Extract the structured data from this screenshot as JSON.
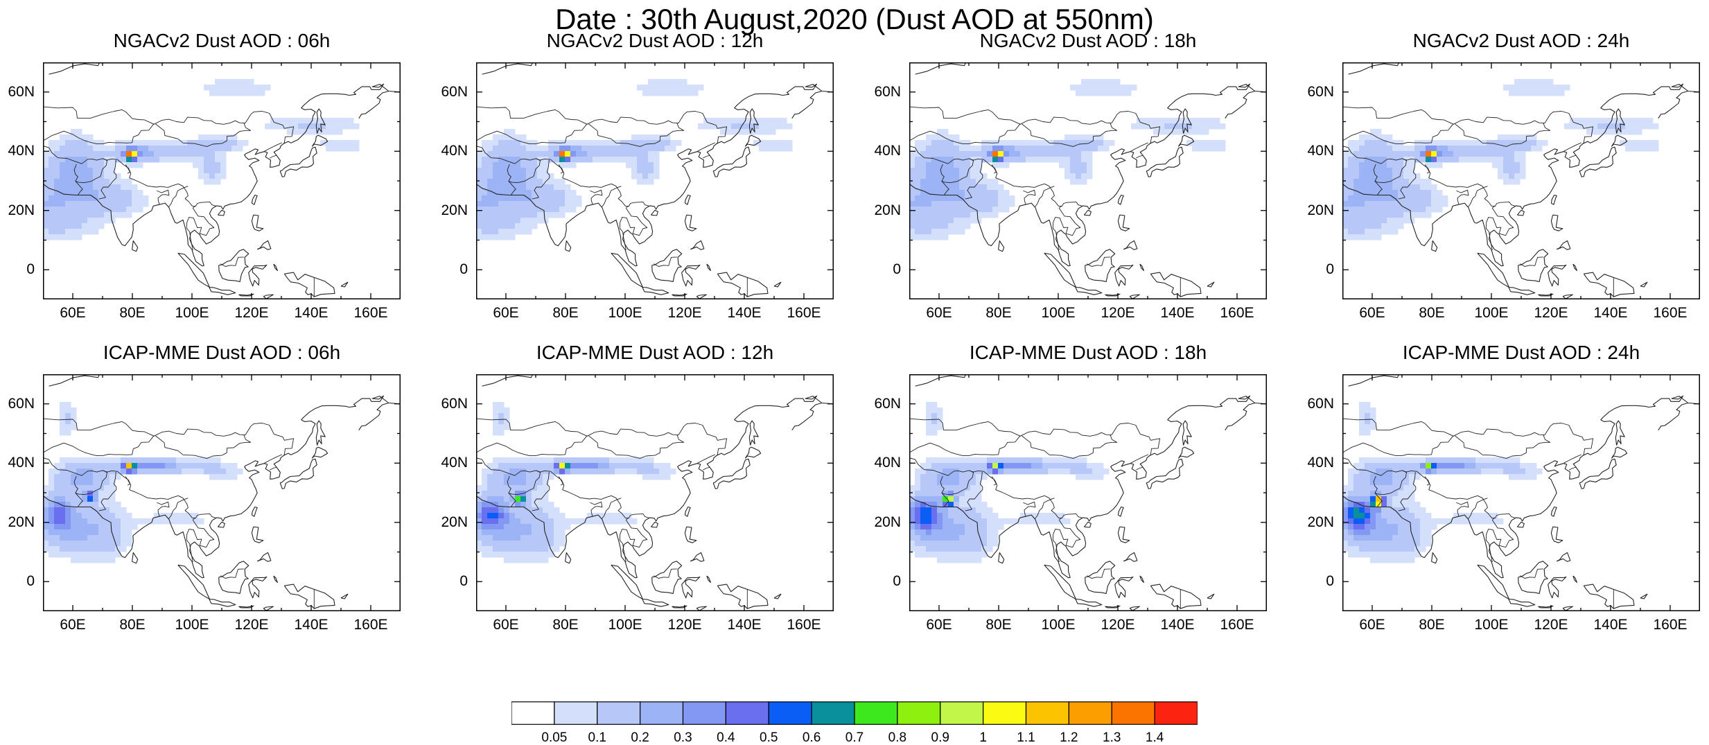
{
  "title": "Date : 30th August,2020 (Dust AOD at 550nm)",
  "map_data": {
    "projection": "cylindrical-equidistant",
    "lon_range": [
      50,
      170
    ],
    "lat_range": [
      -10,
      70
    ],
    "x_ticks": [
      "60E",
      "80E",
      "100E",
      "120E",
      "140E",
      "160E"
    ],
    "y_ticks": [
      "60N",
      "40N",
      "20N",
      "0"
    ],
    "panels": [
      {
        "title": "NGACv2 Dust AOD : 06h",
        "model": "ngac",
        "hour": 6
      },
      {
        "title": "NGACv2 Dust AOD : 12h",
        "model": "ngac",
        "hour": 12
      },
      {
        "title": "NGACv2 Dust AOD : 18h",
        "model": "ngac",
        "hour": 18
      },
      {
        "title": "NGACv2 Dust AOD : 24h",
        "model": "ngac",
        "hour": 24
      },
      {
        "title": "ICAP-MME Dust AOD : 06h",
        "model": "icap",
        "hour": 6
      },
      {
        "title": "ICAP-MME Dust AOD : 12h",
        "model": "icap",
        "hour": 12
      },
      {
        "title": "ICAP-MME Dust AOD : 18h",
        "model": "icap",
        "hour": 18
      },
      {
        "title": "ICAP-MME Dust AOD : 24h",
        "model": "icap",
        "hour": 24
      }
    ]
  },
  "colorbar": {
    "labels": [
      "0.05",
      "0.1",
      "0.2",
      "0.3",
      "0.4",
      "0.5",
      "0.6",
      "0.7",
      "0.8",
      "0.9",
      "1",
      "1.1",
      "1.2",
      "1.3",
      "1.4"
    ],
    "colors": [
      "#ffffff",
      "#d4dffb",
      "#b7c8f8",
      "#9cb4f5",
      "#8298f2",
      "#6a6ff0",
      "#0a5ef5",
      "#0a8f9c",
      "#3ee81e",
      "#8ef00e",
      "#c2f74a",
      "#fafa12",
      "#fcc400",
      "#fc9e00",
      "#fc7400",
      "#fc2410"
    ]
  }
}
